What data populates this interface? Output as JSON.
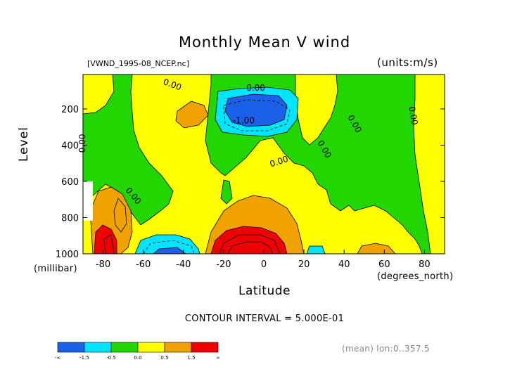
{
  "chart_data": {
    "type": "heatmap",
    "title": "Monthly Mean V wind",
    "dataset_label": "[VWND_1995-08_NCEP.nc]",
    "units_label": "(units:m/s)",
    "xlabel": "Latitude",
    "x_units": "(degrees_north)",
    "ylabel": "Level",
    "y_units": "(millibar)",
    "contour_interval_text": "CONTOUR INTERVAL = 5.000E-01",
    "stat_text": "(mean) lon:0..357.5",
    "xlim": [
      -90,
      90
    ],
    "ylim": [
      1000,
      10
    ],
    "x_ticks": [
      -80,
      -60,
      -40,
      -20,
      0,
      20,
      40,
      60,
      80
    ],
    "x_tick_labels": [
      "-80",
      "-60",
      "-40",
      "-20",
      "0",
      "20",
      "40",
      "60",
      "80"
    ],
    "y_ticks": [
      200,
      400,
      600,
      800,
      1000
    ],
    "y_tick_labels": [
      "200",
      "400",
      "600",
      "800",
      "1000"
    ],
    "contour_labels": [
      {
        "text": "0.00",
        "lat": -46,
        "lev": 80,
        "rotate": 20
      },
      {
        "text": "0.00",
        "lat": -4,
        "lev": 100,
        "rotate": 0
      },
      {
        "text": "-1.00",
        "lat": -10,
        "lev": 280,
        "rotate": 0
      },
      {
        "text": "0.00",
        "lat": 8,
        "lev": 505,
        "rotate": -18
      },
      {
        "text": "0.00",
        "lat": 29,
        "lev": 430,
        "rotate": 60
      },
      {
        "text": "0.00",
        "lat": 44,
        "lev": 290,
        "rotate": 60
      },
      {
        "text": "0.00",
        "lat": 73,
        "lev": 240,
        "rotate": 80
      },
      {
        "text": "0.00",
        "lat": -89,
        "lev": 390,
        "rotate": -90
      },
      {
        "text": "0.00",
        "lat": -66,
        "lev": 690,
        "rotate": 50
      }
    ],
    "legend": {
      "colors": [
        "#1b60e8",
        "#00e4ff",
        "#22d600",
        "#ffff00",
        "#f0a200",
        "#f00000"
      ],
      "tick_labels": [
        "-∞",
        "-1.5",
        "-0.5",
        "0.0",
        "0.5",
        "1.5",
        "∞"
      ]
    },
    "color_levels": {
      "background": "#22d600",
      "yellow": "#ffff00",
      "orange": "#f0a200",
      "red": "#f00000",
      "cyan": "#00e4ff",
      "blue": "#1b60e8"
    }
  }
}
